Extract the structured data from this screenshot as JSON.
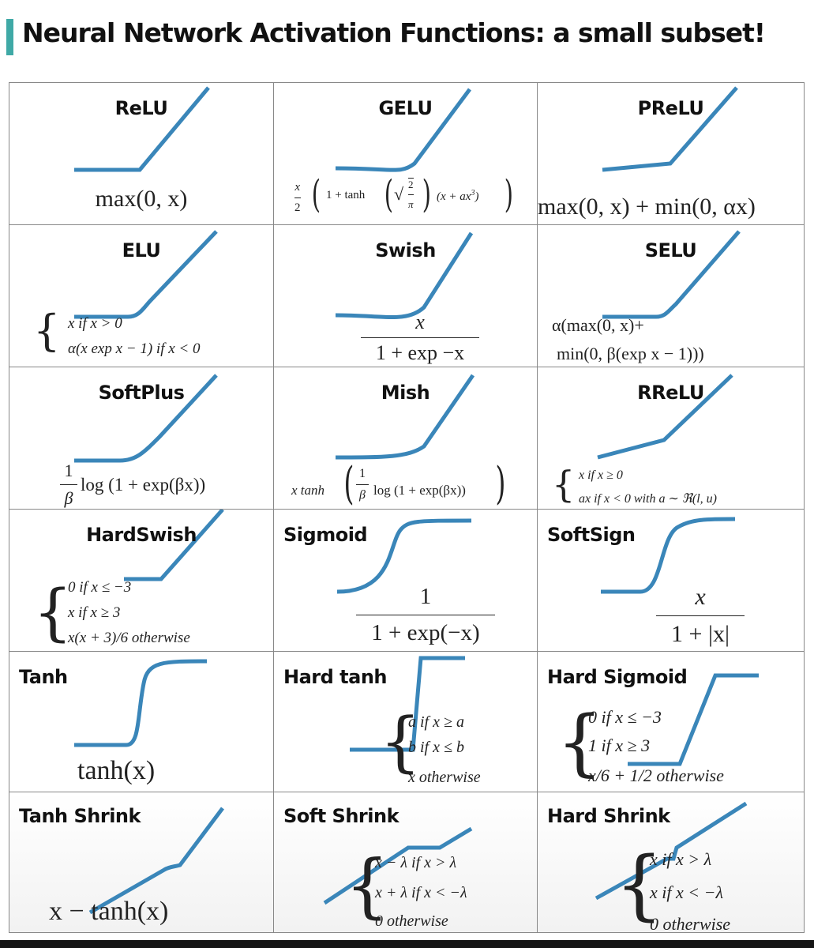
{
  "title": "Neural Network Activation Functions: a small subset!",
  "colors": {
    "accent": "#3fa9a6",
    "curve": "#3a86b9",
    "grid": "#888888",
    "footer": "#151515"
  },
  "cells": [
    {
      "name": "ReLU",
      "formula": [
        "max(0, x)"
      ]
    },
    {
      "name": "GELU",
      "formula": [
        "x",
        "2",
        "1 + tanh",
        "2",
        "π",
        "(x + ax",
        "3",
        ")"
      ]
    },
    {
      "name": "PReLU",
      "formula": [
        "max(0, x) + min(0, αx)"
      ]
    },
    {
      "name": "ELU",
      "formula": [
        "x if x > 0",
        "α(x exp x − 1) if x < 0"
      ]
    },
    {
      "name": "Swish",
      "formula": [
        "x",
        "1 + exp −x"
      ]
    },
    {
      "name": "SELU",
      "formula": [
        "α(max(0, x)+",
        "min(0, β(exp x − 1)))"
      ]
    },
    {
      "name": "SoftPlus",
      "formula": [
        "1",
        "β",
        "log (1 + exp(βx))"
      ]
    },
    {
      "name": "Mish",
      "formula": [
        "x tanh",
        "1",
        "β",
        "log (1 + exp(βx))"
      ]
    },
    {
      "name": "RReLU",
      "formula": [
        "x if x ≥ 0",
        "ax if x < 0 with a ∼ ℜ(l, u)"
      ]
    },
    {
      "name": "HardSwish",
      "formula": [
        "0 if x ≤ −3",
        "x if x ≥ 3",
        "x(x + 3)/6 otherwise"
      ]
    },
    {
      "name": "Sigmoid",
      "formula": [
        "1",
        "1 + exp(−x)"
      ]
    },
    {
      "name": "SoftSign",
      "formula": [
        "x",
        "1 + |x|"
      ]
    },
    {
      "name": "Tanh",
      "formula": [
        "tanh(x)"
      ]
    },
    {
      "name": "Hard tanh",
      "formula": [
        "a if x ≥ a",
        "b if x ≤ b",
        "x otherwise"
      ]
    },
    {
      "name": "Hard Sigmoid",
      "formula": [
        "0 if x ≤ −3",
        "1 if x ≥ 3",
        "x/6 + 1/2 otherwise"
      ]
    },
    {
      "name": "Tanh Shrink",
      "formula": [
        "x − tanh(x)"
      ]
    },
    {
      "name": "Soft Shrink",
      "formula": [
        "x − λ if x > λ",
        "x + λ if x < −λ",
        "0 otherwise"
      ]
    },
    {
      "name": "Hard Shrink",
      "formula": [
        "x if x > λ",
        "x if x < −λ",
        "0 otherwise"
      ]
    }
  ]
}
